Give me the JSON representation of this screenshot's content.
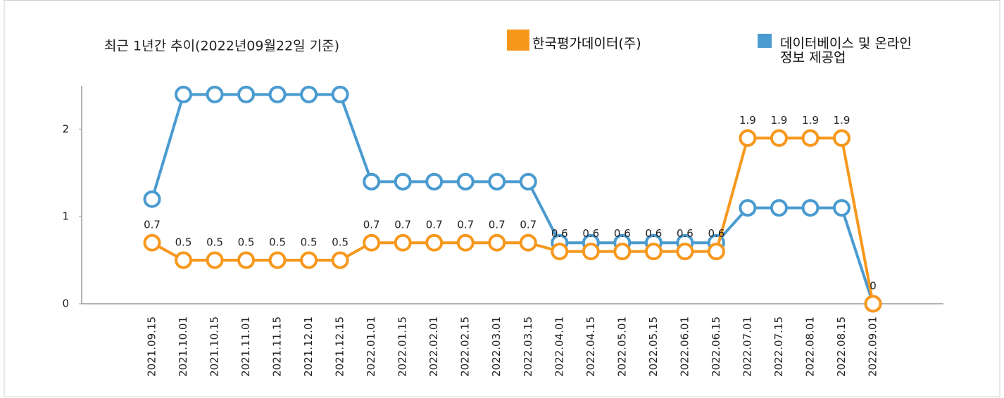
{
  "chart_data": {
    "type": "line",
    "title": "최근 1년간 추이(2022년09월22일 기준)",
    "categories": [
      "2021.09.15",
      "2021.10.01",
      "2021.10.15",
      "2021.11.01",
      "2021.11.15",
      "2021.12.01",
      "2021.12.15",
      "2022.01.01",
      "2022.01.15",
      "2022.02.01",
      "2022.02.15",
      "2022.03.01",
      "2022.03.15",
      "2022.04.01",
      "2022.04.15",
      "2022.05.01",
      "2022.05.15",
      "2022.06.01",
      "2022.06.15",
      "2022.07.01",
      "2022.07.15",
      "2022.08.01",
      "2022.08.15",
      "2022.09.01"
    ],
    "series": [
      {
        "name": "한국평가데이터(주)",
        "color": "#f7981d",
        "show_labels": true,
        "values": [
          0.7,
          0.5,
          0.5,
          0.5,
          0.5,
          0.5,
          0.5,
          0.7,
          0.7,
          0.7,
          0.7,
          0.7,
          0.7,
          0.6,
          0.6,
          0.6,
          0.6,
          0.6,
          0.6,
          1.9,
          1.9,
          1.9,
          1.9,
          0
        ]
      },
      {
        "name": "데이터베이스 및 온라인정보 제공업",
        "color": "#4a9bd0",
        "show_labels": false,
        "values": [
          1.2,
          2.4,
          2.4,
          2.4,
          2.4,
          2.4,
          2.4,
          1.4,
          1.4,
          1.4,
          1.4,
          1.4,
          1.4,
          0.7,
          0.7,
          0.7,
          0.7,
          0.7,
          0.7,
          1.1,
          1.1,
          1.1,
          1.1,
          0
        ]
      }
    ],
    "ylim": [
      0,
      2.5
    ],
    "yticks": [
      0,
      1,
      2
    ],
    "grid": false
  }
}
